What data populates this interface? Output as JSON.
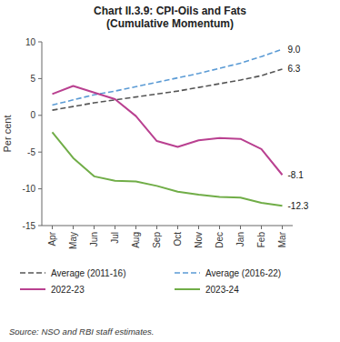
{
  "chart_data": {
    "type": "line",
    "title": "Chart II.3.9: CPI-Oils and Fats\n(Cumulative Momentum)",
    "y_label": "Per cent",
    "categories": [
      "Apr",
      "May",
      "Jun",
      "Jul",
      "Aug",
      "Sep",
      "Oct",
      "Nov",
      "Dec",
      "Jan",
      "Feb",
      "Mar"
    ],
    "series": [
      {
        "name": "Average (2011-16)",
        "color": "#555555",
        "line_style": "dashed",
        "values": [
          0.7,
          1.2,
          1.7,
          2.1,
          2.5,
          2.9,
          3.3,
          3.8,
          4.3,
          4.8,
          5.4,
          6.3
        ]
      },
      {
        "name": "Average (2016-22)",
        "color": "#5b9bd5",
        "line_style": "dashed",
        "values": [
          1.4,
          2.1,
          2.8,
          3.3,
          3.9,
          4.5,
          5.1,
          5.7,
          6.4,
          7.1,
          8.0,
          9.0
        ]
      },
      {
        "name": "2022-23",
        "color": "#b94090",
        "line_style": "solid",
        "values": [
          2.9,
          4.0,
          3.1,
          2.2,
          -0.1,
          -3.5,
          -4.3,
          -3.4,
          -3.1,
          -3.2,
          -4.6,
          -8.1
        ]
      },
      {
        "name": "2023-24",
        "color": "#70ad47",
        "line_style": "solid",
        "values": [
          -2.3,
          -5.8,
          -8.3,
          -8.9,
          -9.0,
          -9.6,
          -10.4,
          -10.8,
          -11.1,
          -11.2,
          -11.9,
          -12.3
        ]
      }
    ],
    "ylim": [
      -15,
      10
    ],
    "yticks": [
      -15,
      -10,
      -5,
      0,
      5,
      10
    ],
    "grid": false,
    "legend": "bottom",
    "annotations": [
      {
        "text": "9.0",
        "x": "Mar",
        "y": 9.0
      },
      {
        "text": "6.3",
        "x": "Mar",
        "y": 6.3
      },
      {
        "text": "-8.1",
        "x": "Mar",
        "y": -8.1
      },
      {
        "text": "-12.3",
        "x": "Mar",
        "y": -12.3
      },
      {
        "text": "Source: NSO and RBI staff estimates."
      }
    ]
  }
}
